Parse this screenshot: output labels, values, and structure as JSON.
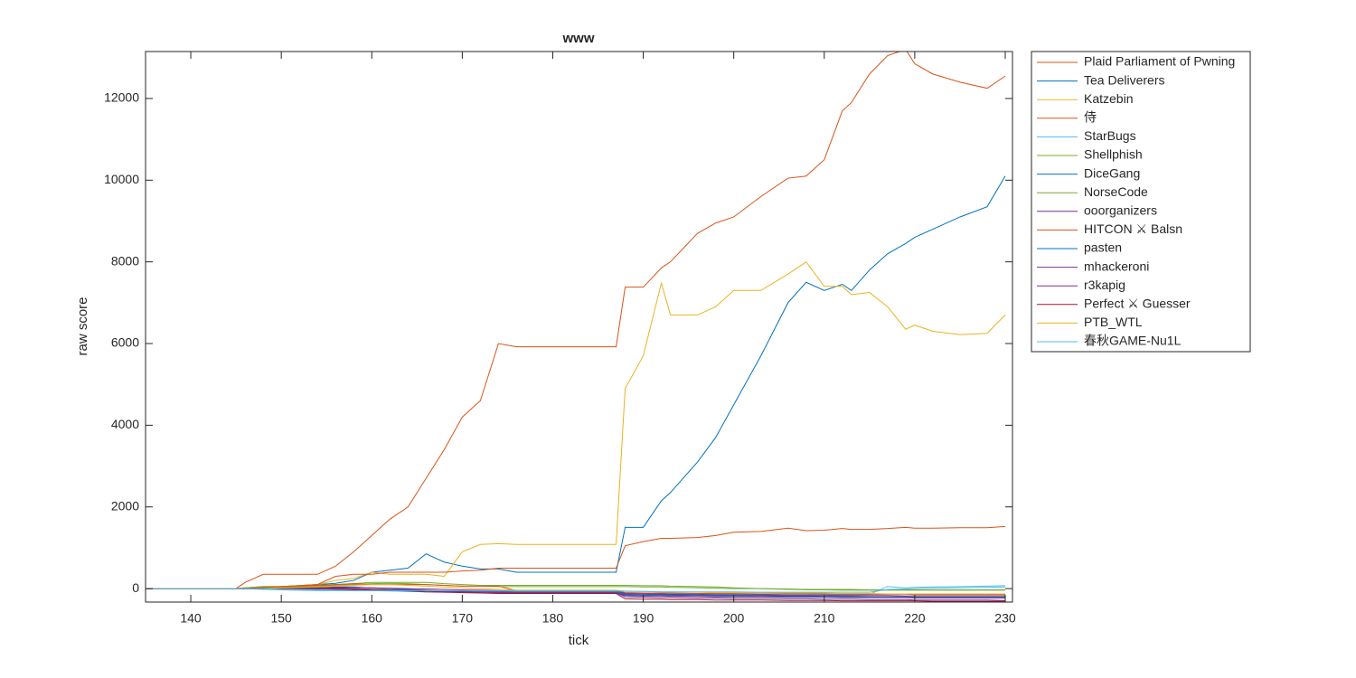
{
  "chart_data": {
    "type": "line",
    "title": "www",
    "xlabel": "tick",
    "ylabel": "raw score",
    "xlim": [
      135,
      230.8
    ],
    "xticks": [
      140,
      150,
      160,
      170,
      180,
      190,
      200,
      210,
      220,
      230
    ],
    "ylim": [
      -330,
      13150
    ],
    "yticks": [
      0,
      2000,
      4000,
      6000,
      8000,
      10000,
      12000
    ],
    "legend": "outside-right",
    "x": [
      135,
      145,
      146,
      148,
      150,
      154,
      156,
      158,
      160,
      162,
      164,
      166,
      168,
      170,
      172,
      174,
      176,
      180,
      187,
      188,
      190,
      192,
      193,
      196,
      198,
      200,
      203,
      206,
      208,
      210,
      212,
      213,
      215,
      217,
      219,
      220,
      222,
      225,
      228,
      230
    ],
    "series": [
      {
        "name": "Plaid Parliament of Pwning",
        "color": "#d95319",
        "values": [
          0,
          0,
          150,
          350,
          350,
          350,
          550,
          900,
          1300,
          1700,
          2000,
          2700,
          3400,
          4200,
          4600,
          6000,
          5920,
          5920,
          5920,
          7380,
          7380,
          7850,
          8000,
          8700,
          8950,
          9100,
          9600,
          10050,
          10100,
          10500,
          11700,
          11900,
          12600,
          13050,
          13200,
          12850,
          12600,
          12400,
          12250,
          12550
        ]
      },
      {
        "name": "Tea Deliverers",
        "color": "#0072bd",
        "values": [
          0,
          0,
          0,
          20,
          50,
          100,
          130,
          200,
          400,
          450,
          500,
          850,
          650,
          550,
          480,
          480,
          400,
          400,
          400,
          1500,
          1500,
          2150,
          2350,
          3100,
          3700,
          4500,
          5700,
          7000,
          7500,
          7300,
          7450,
          7300,
          7800,
          8200,
          8450,
          8600,
          8800,
          9100,
          9350,
          10100
        ]
      },
      {
        "name": "Katzebin",
        "color": "#edb120",
        "values": [
          0,
          0,
          0,
          0,
          50,
          100,
          200,
          250,
          400,
          350,
          350,
          350,
          300,
          900,
          1080,
          1100,
          1080,
          1080,
          1080,
          4900,
          5700,
          7480,
          6700,
          6700,
          6900,
          7300,
          7300,
          7700,
          8000,
          7400,
          7400,
          7200,
          7250,
          6900,
          6350,
          6450,
          6300,
          6220,
          6250,
          6700
        ]
      },
      {
        "name": "侍",
        "color": "#d95319",
        "values": [
          0,
          0,
          20,
          50,
          50,
          100,
          300,
          350,
          350,
          400,
          400,
          400,
          400,
          430,
          450,
          500,
          500,
          500,
          500,
          1050,
          1150,
          1230,
          1230,
          1250,
          1300,
          1380,
          1400,
          1480,
          1420,
          1430,
          1470,
          1450,
          1450,
          1470,
          1500,
          1480,
          1480,
          1490,
          1490,
          1520
        ]
      },
      {
        "name": "StarBugs",
        "color": "#4dbeee",
        "values": [
          0,
          0,
          0,
          -20,
          -30,
          -50,
          -50,
          -50,
          -50,
          -60,
          -70,
          -80,
          -80,
          -80,
          -90,
          -90,
          -90,
          -90,
          -90,
          -100,
          -110,
          -120,
          -120,
          -130,
          -130,
          -130,
          -140,
          -140,
          -140,
          -150,
          -150,
          -150,
          -140,
          50,
          20,
          30,
          40,
          50,
          60,
          70
        ]
      },
      {
        "name": "Shellphish",
        "color": "#77ac30",
        "values": [
          0,
          0,
          20,
          50,
          50,
          80,
          100,
          120,
          150,
          150,
          150,
          150,
          120,
          100,
          80,
          80,
          80,
          80,
          80,
          80,
          70,
          70,
          60,
          50,
          40,
          20,
          0,
          -20,
          -30,
          -30,
          -40,
          -40,
          -40,
          -40,
          -40,
          -40,
          -40,
          -40,
          -40,
          -40
        ]
      },
      {
        "name": "DiceGang",
        "color": "#0072bd",
        "values": [
          0,
          0,
          0,
          0,
          20,
          30,
          20,
          0,
          -20,
          -30,
          -40,
          -50,
          -60,
          -60,
          -70,
          -70,
          -80,
          -80,
          -80,
          -130,
          -140,
          -150,
          -150,
          -160,
          -160,
          -170,
          -170,
          -180,
          -180,
          -190,
          -190,
          -190,
          -200,
          -200,
          -200,
          -210,
          -210,
          -210,
          -210,
          -210
        ]
      },
      {
        "name": "NorseCode",
        "color": "#77ac30",
        "values": [
          0,
          0,
          0,
          10,
          30,
          60,
          80,
          100,
          120,
          130,
          120,
          100,
          80,
          60,
          60,
          50,
          50,
          50,
          50,
          50,
          40,
          40,
          30,
          20,
          10,
          0,
          0,
          -10,
          -20,
          -20,
          -20,
          -20,
          -30,
          -30,
          -30,
          -30,
          -30,
          -30,
          -30,
          -30
        ]
      },
      {
        "name": "ooorganizers",
        "color": "#7e2f8e",
        "values": [
          0,
          0,
          0,
          0,
          0,
          -10,
          -20,
          -30,
          -40,
          -50,
          -60,
          -60,
          -70,
          -80,
          -90,
          -100,
          -100,
          -100,
          -100,
          -200,
          -210,
          -220,
          -220,
          -230,
          -230,
          -240,
          -240,
          -250,
          -250,
          -260,
          -260,
          -260,
          -270,
          -270,
          -270,
          -280,
          -280,
          -280,
          -280,
          -290
        ]
      },
      {
        "name": "HITCON ⚔ Balsn",
        "color": "#d95319",
        "values": [
          0,
          0,
          0,
          30,
          50,
          80,
          100,
          120,
          100,
          100,
          100,
          100,
          80,
          60,
          60,
          60,
          -50,
          -50,
          -50,
          -100,
          -110,
          -110,
          -110,
          -120,
          -120,
          -120,
          -130,
          -130,
          -130,
          -130,
          -140,
          -140,
          -140,
          -140,
          -140,
          -150,
          -150,
          -150,
          -150,
          -150
        ]
      },
      {
        "name": "pasten",
        "color": "#0072bd",
        "values": [
          0,
          0,
          0,
          0,
          0,
          20,
          40,
          40,
          20,
          0,
          -20,
          -40,
          -60,
          -60,
          -80,
          -80,
          -100,
          -100,
          -100,
          -150,
          -160,
          -170,
          -170,
          -180,
          -180,
          -180,
          -190,
          -190,
          -190,
          -200,
          -200,
          -200,
          -210,
          -210,
          -210,
          -220,
          -220,
          -220,
          -220,
          -220
        ]
      },
      {
        "name": "mhackeroni",
        "color": "#7e2f8e",
        "values": [
          0,
          0,
          0,
          0,
          10,
          20,
          30,
          30,
          20,
          10,
          0,
          -10,
          -20,
          -30,
          -40,
          -50,
          -60,
          -60,
          -60,
          -120,
          -130,
          -130,
          -140,
          -140,
          -150,
          -150,
          -150,
          -160,
          -160,
          -160,
          -170,
          -170,
          -170,
          -170,
          -180,
          -180,
          -180,
          -180,
          -180,
          -180
        ]
      },
      {
        "name": "r3kapig",
        "color": "#7e2f8e",
        "values": [
          0,
          0,
          0,
          0,
          0,
          0,
          0,
          -10,
          -20,
          -30,
          -40,
          -50,
          -60,
          -70,
          -80,
          -90,
          -100,
          -100,
          -100,
          -170,
          -180,
          -180,
          -190,
          -190,
          -200,
          -200,
          -200,
          -210,
          -210,
          -210,
          -220,
          -220,
          -220,
          -220,
          -220,
          -230,
          -230,
          -230,
          -230,
          -230
        ]
      },
      {
        "name": "Perfect ⚔ Guesser",
        "color": "#a2142f",
        "values": [
          0,
          0,
          0,
          0,
          10,
          20,
          20,
          0,
          -20,
          -40,
          -60,
          -80,
          -90,
          -100,
          -110,
          -120,
          -120,
          -120,
          -120,
          -250,
          -260,
          -260,
          -270,
          -270,
          -280,
          -280,
          -280,
          -290,
          -290,
          -290,
          -300,
          -300,
          -300,
          -300,
          -300,
          -300,
          -310,
          -310,
          -310,
          -310
        ]
      },
      {
        "name": "PTB_WTL",
        "color": "#edb120",
        "values": [
          0,
          0,
          0,
          0,
          20,
          40,
          60,
          80,
          100,
          100,
          80,
          60,
          40,
          20,
          0,
          -20,
          -40,
          -40,
          -40,
          -60,
          -70,
          -80,
          -80,
          -90,
          -100,
          -100,
          -100,
          -110,
          -110,
          -110,
          -120,
          -120,
          -120,
          -130,
          -130,
          -130,
          -130,
          -130,
          -130,
          -130
        ]
      },
      {
        "name": "春秋GAME-Nu1L",
        "color": "#4dbeee",
        "values": [
          0,
          0,
          0,
          0,
          -20,
          -30,
          -40,
          -50,
          -50,
          -50,
          -50,
          -50,
          -50,
          -50,
          -60,
          -60,
          -60,
          -60,
          -60,
          -70,
          -70,
          -80,
          -80,
          -80,
          -80,
          -80,
          -90,
          -90,
          -90,
          -90,
          -90,
          -90,
          -90,
          -20,
          -10,
          0,
          10,
          20,
          30,
          40
        ]
      }
    ]
  }
}
